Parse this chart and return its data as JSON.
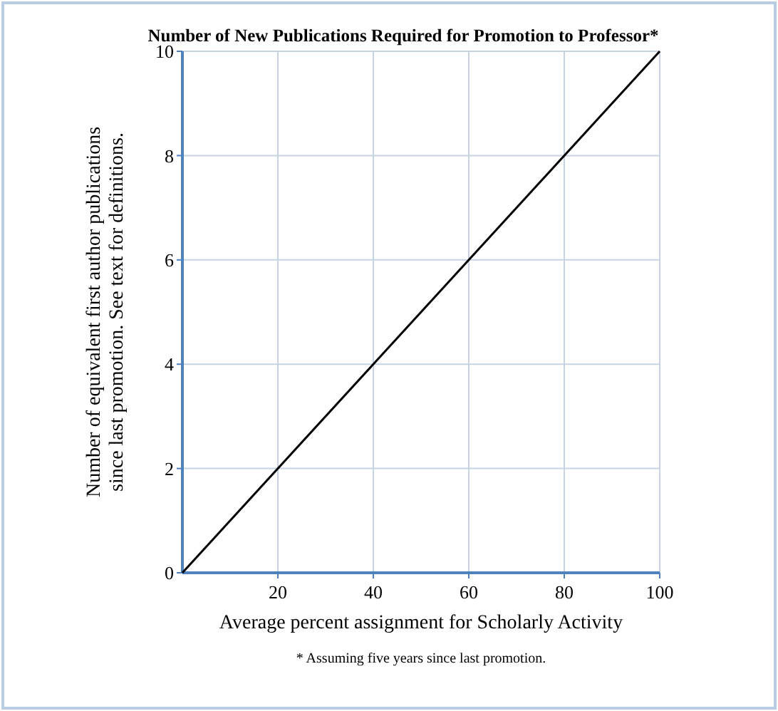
{
  "chart_data": {
    "type": "line",
    "title": "Number of New Publications Required for Promotion to Professor*",
    "xlabel": "Average percent assignment for Scholarly Activity",
    "ylabel": "Number of equivalent first author publications\nsince last promotion. See text for definitions.",
    "annotations": [
      "* Assuming five years since last promotion."
    ],
    "x": [
      0,
      100
    ],
    "series": [
      {
        "color": "#000000",
        "values": [
          0,
          10
        ]
      }
    ],
    "xlim": [
      0,
      100
    ],
    "ylim": [
      0,
      10
    ],
    "xticks": [
      20,
      40,
      60,
      80,
      100
    ],
    "yticks": [
      0,
      2,
      4,
      6,
      8,
      10
    ],
    "grid": true,
    "marker": "none",
    "line_style": "solid"
  }
}
